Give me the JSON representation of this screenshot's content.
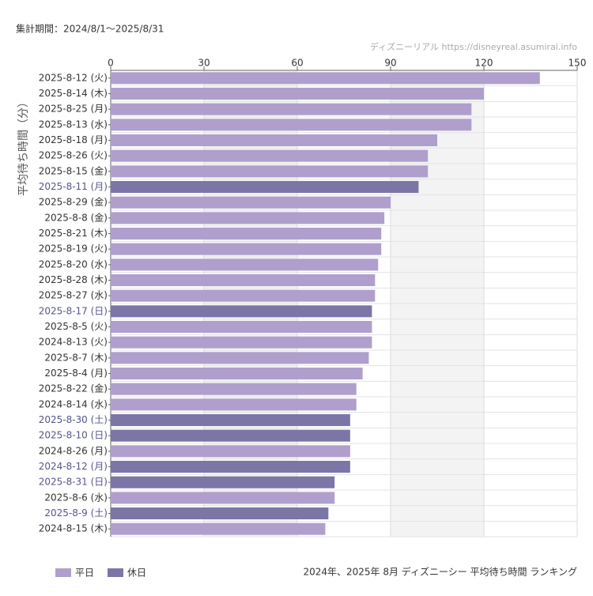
{
  "header": {
    "period": "集計期間：2024/8/1～2025/8/31",
    "source": "ディズニーリアル https://disneyreal.asumirai.info"
  },
  "chart_data": {
    "type": "bar",
    "orientation": "horizontal",
    "title": "2024年、2025年 8月 ディズニーシー 平均待ち時間 ランキング",
    "y_label": "平均待ち時間（分）",
    "categories": [
      "2025-8-12 (火)",
      "2025-8-14 (木)",
      "2025-8-25 (月)",
      "2025-8-13 (水)",
      "2025-8-18 (月)",
      "2025-8-26 (火)",
      "2025-8-15 (金)",
      "2025-8-11 (月)",
      "2025-8-29 (金)",
      "2025-8-8 (金)",
      "2025-8-21 (木)",
      "2025-8-19 (火)",
      "2025-8-20 (水)",
      "2025-8-28 (木)",
      "2025-8-27 (水)",
      "2025-8-17 (日)",
      "2025-8-5 (火)",
      "2024-8-13 (火)",
      "2025-8-7 (木)",
      "2025-8-4 (月)",
      "2025-8-22 (金)",
      "2024-8-14 (水)",
      "2025-8-30 (土)",
      "2025-8-10 (日)",
      "2024-8-26 (月)",
      "2024-8-12 (月)",
      "2025-8-31 (日)",
      "2025-8-6 (水)",
      "2025-8-9 (土)",
      "2024-8-15 (木)"
    ],
    "series": [
      {
        "name": "平日",
        "color": "#b09fcc",
        "values": [
          138,
          120,
          116,
          116,
          105,
          102,
          102,
          null,
          90,
          88,
          87,
          87,
          86,
          85,
          85,
          null,
          84,
          84,
          83,
          81,
          79,
          79,
          null,
          null,
          77,
          null,
          null,
          72,
          null,
          69
        ]
      },
      {
        "name": "休日",
        "color": "#7b76a6",
        "values": [
          null,
          null,
          null,
          null,
          null,
          null,
          null,
          99,
          null,
          null,
          null,
          null,
          null,
          null,
          null,
          84,
          null,
          null,
          null,
          null,
          null,
          null,
          77,
          77,
          null,
          77,
          72,
          null,
          70,
          null
        ]
      }
    ],
    "xlim": [
      0,
      150
    ],
    "xticks": [
      0,
      30,
      60,
      90,
      120,
      150
    ],
    "grid": true,
    "legend": "bottom-left"
  }
}
